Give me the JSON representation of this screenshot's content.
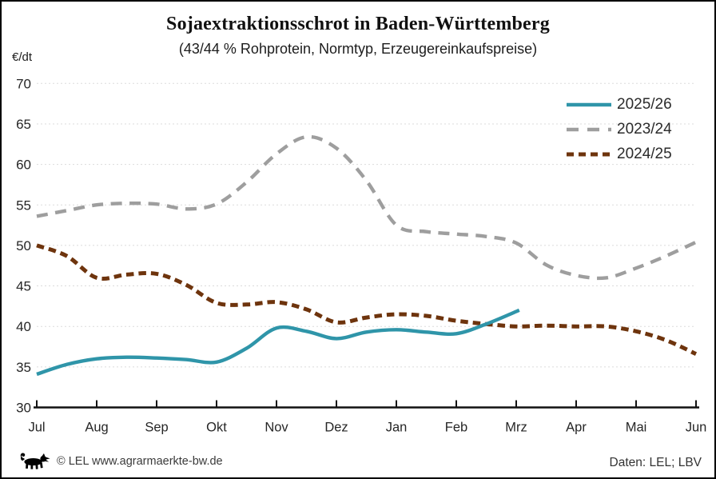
{
  "header": {
    "title": "Sojaextraktionsschrot in Baden-Württemberg",
    "subtitle": "(43/44 % Rohprotein, Normtyp, Erzeugereinkaufspreise)",
    "y_unit": "€/dt"
  },
  "footer": {
    "left_text": "© LEL www.agrarmaerkte-bw.de",
    "right_text": "Daten: LEL; LBV"
  },
  "chart_data": {
    "type": "line",
    "title": "Sojaextraktionsschrot in Baden-Württemberg",
    "subtitle": "(43/44 % Rohprotein, Normtyp, Erzeugereinkaufspreise)",
    "ylabel": "€/dt",
    "xlabel": "",
    "ylim": [
      30,
      70
    ],
    "y_ticks": [
      30,
      35,
      40,
      45,
      50,
      55,
      60,
      65,
      70
    ],
    "grid": true,
    "legend_position": "top-right",
    "x_categories": [
      "Jul",
      "Aug",
      "Sep",
      "Okt",
      "Nov",
      "Dez",
      "Jan",
      "Feb",
      "Mrz",
      "Apr",
      "Mai",
      "Jun"
    ],
    "axis_color": "#111111",
    "gridline_color": "#dbdbdb",
    "series": [
      {
        "name": "2025/26",
        "color": "#2f95a9",
        "dash": "none",
        "x": [
          0,
          0.5,
          1,
          1.5,
          2,
          2.5,
          3,
          3.5,
          4,
          4.5,
          5,
          5.5,
          6,
          6.5,
          7,
          7.5,
          8.05
        ],
        "values": [
          34.1,
          35.3,
          36.0,
          36.2,
          36.1,
          35.9,
          35.6,
          37.3,
          39.8,
          39.4,
          38.5,
          39.3,
          39.6,
          39.3,
          39.1,
          40.3,
          42.0
        ]
      },
      {
        "name": "2023/24",
        "color": "#9e9e9e",
        "dash": "long",
        "x": [
          0,
          0.5,
          1,
          1.5,
          2,
          2.5,
          3,
          3.5,
          4,
          4.5,
          5,
          5.5,
          6,
          6.5,
          7,
          7.5,
          8,
          8.5,
          9,
          9.5,
          10,
          10.5,
          11
        ],
        "values": [
          53.6,
          54.3,
          55.0,
          55.2,
          55.1,
          54.5,
          55.1,
          57.8,
          61.3,
          63.4,
          62.0,
          58.0,
          52.5,
          51.7,
          51.4,
          51.1,
          50.3,
          47.6,
          46.3,
          46.0,
          47.2,
          48.7,
          50.4
        ]
      },
      {
        "name": "2024/25",
        "color": "#6e340d",
        "dash": "short",
        "x": [
          0,
          0.5,
          1,
          1.5,
          2,
          2.5,
          3,
          3.5,
          4,
          4.5,
          5,
          5.5,
          6,
          6.5,
          7,
          7.5,
          8,
          8.5,
          9,
          9.5,
          10,
          10.5,
          11
        ],
        "values": [
          50.0,
          48.7,
          46.0,
          46.4,
          46.5,
          45.1,
          42.9,
          42.7,
          43.0,
          42.1,
          40.5,
          41.1,
          41.5,
          41.3,
          40.7,
          40.3,
          40.0,
          40.1,
          40.0,
          40.0,
          39.4,
          38.3,
          36.6
        ]
      }
    ]
  }
}
